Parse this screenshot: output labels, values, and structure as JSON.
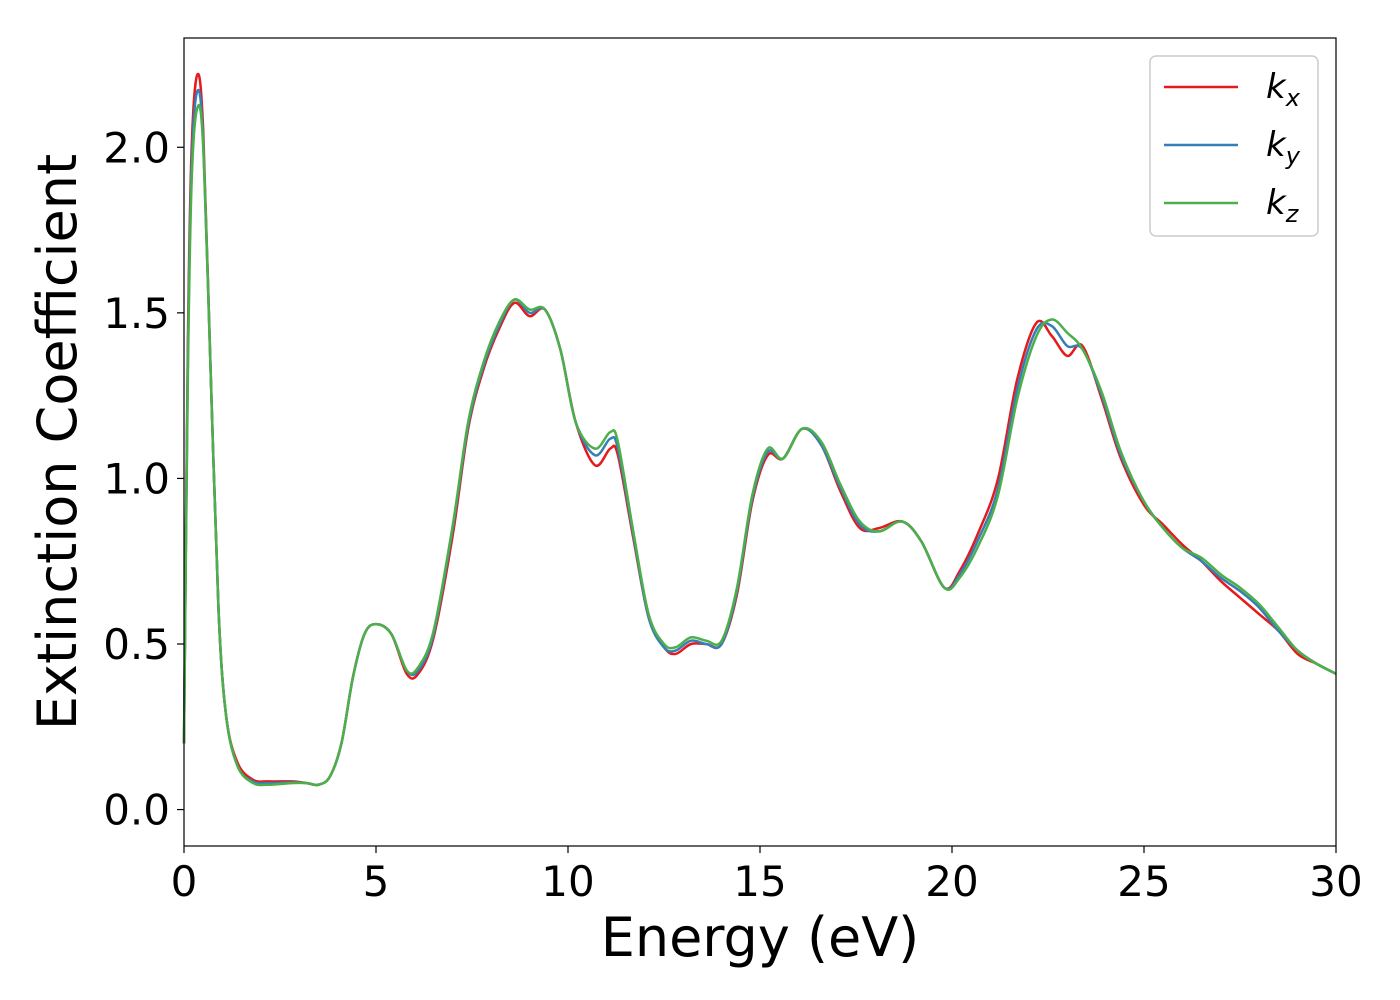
{
  "chart_data": {
    "type": "line",
    "title": "",
    "xlabel": "Energy (eV)",
    "ylabel": "Extinction Coefficient",
    "xlim": [
      0,
      30
    ],
    "ylim": [
      -0.11,
      2.33
    ],
    "xticks": [
      0,
      5,
      10,
      15,
      20,
      25,
      30
    ],
    "xtick_labels": [
      "0",
      "5",
      "10",
      "15",
      "20",
      "25",
      "30"
    ],
    "yticks": [
      0.0,
      0.5,
      1.0,
      1.5,
      2.0
    ],
    "ytick_labels": [
      "0.0",
      "0.5",
      "1.0",
      "1.5",
      "2.0"
    ],
    "grid": false,
    "legend": "top-right",
    "series": [
      {
        "name": "k",
        "subscript": "x",
        "color": "#e41a1c",
        "points": [
          [
            0,
            0.2
          ],
          [
            0.1,
            1.4
          ],
          [
            0.2,
            2.0
          ],
          [
            0.35,
            2.22
          ],
          [
            0.5,
            2.05
          ],
          [
            0.7,
            1.3
          ],
          [
            0.9,
            0.6
          ],
          [
            1.1,
            0.28
          ],
          [
            1.4,
            0.14
          ],
          [
            1.8,
            0.09
          ],
          [
            2.2,
            0.085
          ],
          [
            2.8,
            0.085
          ],
          [
            3.2,
            0.08
          ],
          [
            3.5,
            0.075
          ],
          [
            3.8,
            0.1
          ],
          [
            4.1,
            0.2
          ],
          [
            4.4,
            0.4
          ],
          [
            4.7,
            0.53
          ],
          [
            5.0,
            0.56
          ],
          [
            5.4,
            0.53
          ],
          [
            5.8,
            0.41
          ],
          [
            6.1,
            0.41
          ],
          [
            6.5,
            0.52
          ],
          [
            7.0,
            0.83
          ],
          [
            7.4,
            1.15
          ],
          [
            7.8,
            1.33
          ],
          [
            8.2,
            1.45
          ],
          [
            8.6,
            1.53
          ],
          [
            9.0,
            1.49
          ],
          [
            9.4,
            1.51
          ],
          [
            9.8,
            1.39
          ],
          [
            10.2,
            1.17
          ],
          [
            10.7,
            1.04
          ],
          [
            11.1,
            1.09
          ],
          [
            11.3,
            1.07
          ],
          [
            11.7,
            0.82
          ],
          [
            12.1,
            0.58
          ],
          [
            12.5,
            0.49
          ],
          [
            12.8,
            0.47
          ],
          [
            13.2,
            0.5
          ],
          [
            13.6,
            0.5
          ],
          [
            14.0,
            0.5
          ],
          [
            14.4,
            0.65
          ],
          [
            14.8,
            0.93
          ],
          [
            15.2,
            1.07
          ],
          [
            15.6,
            1.06
          ],
          [
            16.1,
            1.15
          ],
          [
            16.6,
            1.1
          ],
          [
            17.1,
            0.96
          ],
          [
            17.6,
            0.85
          ],
          [
            18.1,
            0.85
          ],
          [
            18.7,
            0.87
          ],
          [
            19.2,
            0.81
          ],
          [
            19.8,
            0.67
          ],
          [
            20.2,
            0.72
          ],
          [
            20.7,
            0.84
          ],
          [
            21.2,
            1.0
          ],
          [
            21.7,
            1.3
          ],
          [
            22.2,
            1.47
          ],
          [
            22.6,
            1.43
          ],
          [
            23.0,
            1.37
          ],
          [
            23.4,
            1.4
          ],
          [
            23.9,
            1.24
          ],
          [
            24.4,
            1.06
          ],
          [
            25.0,
            0.92
          ],
          [
            25.5,
            0.86
          ],
          [
            26.0,
            0.8
          ],
          [
            26.5,
            0.75
          ],
          [
            27.0,
            0.69
          ],
          [
            27.5,
            0.64
          ],
          [
            28.0,
            0.59
          ],
          [
            28.5,
            0.54
          ],
          [
            29.0,
            0.47
          ],
          [
            29.5,
            0.44
          ],
          [
            30.0,
            0.41
          ]
        ]
      },
      {
        "name": "k",
        "subscript": "y",
        "color": "#377eb8",
        "points": [
          [
            0,
            0.2
          ],
          [
            0.1,
            1.35
          ],
          [
            0.2,
            1.95
          ],
          [
            0.35,
            2.17
          ],
          [
            0.5,
            2.02
          ],
          [
            0.7,
            1.3
          ],
          [
            0.9,
            0.6
          ],
          [
            1.1,
            0.28
          ],
          [
            1.4,
            0.13
          ],
          [
            1.8,
            0.085
          ],
          [
            2.2,
            0.08
          ],
          [
            2.8,
            0.082
          ],
          [
            3.2,
            0.08
          ],
          [
            3.5,
            0.075
          ],
          [
            3.8,
            0.1
          ],
          [
            4.1,
            0.2
          ],
          [
            4.4,
            0.4
          ],
          [
            4.7,
            0.53
          ],
          [
            5.0,
            0.56
          ],
          [
            5.4,
            0.53
          ],
          [
            5.8,
            0.42
          ],
          [
            6.1,
            0.42
          ],
          [
            6.5,
            0.53
          ],
          [
            7.0,
            0.85
          ],
          [
            7.4,
            1.16
          ],
          [
            7.8,
            1.34
          ],
          [
            8.2,
            1.46
          ],
          [
            8.6,
            1.54
          ],
          [
            9.0,
            1.5
          ],
          [
            9.4,
            1.51
          ],
          [
            9.8,
            1.39
          ],
          [
            10.2,
            1.17
          ],
          [
            10.7,
            1.07
          ],
          [
            11.1,
            1.12
          ],
          [
            11.3,
            1.09
          ],
          [
            11.7,
            0.83
          ],
          [
            12.1,
            0.58
          ],
          [
            12.5,
            0.49
          ],
          [
            12.8,
            0.48
          ],
          [
            13.2,
            0.51
          ],
          [
            13.6,
            0.5
          ],
          [
            14.0,
            0.5
          ],
          [
            14.4,
            0.66
          ],
          [
            14.8,
            0.94
          ],
          [
            15.2,
            1.08
          ],
          [
            15.6,
            1.06
          ],
          [
            16.1,
            1.15
          ],
          [
            16.6,
            1.1
          ],
          [
            17.1,
            0.97
          ],
          [
            17.6,
            0.86
          ],
          [
            18.1,
            0.84
          ],
          [
            18.7,
            0.87
          ],
          [
            19.2,
            0.81
          ],
          [
            19.8,
            0.67
          ],
          [
            20.2,
            0.71
          ],
          [
            20.7,
            0.82
          ],
          [
            21.2,
            0.97
          ],
          [
            21.7,
            1.27
          ],
          [
            22.2,
            1.45
          ],
          [
            22.6,
            1.46
          ],
          [
            23.0,
            1.4
          ],
          [
            23.4,
            1.39
          ],
          [
            23.9,
            1.25
          ],
          [
            24.4,
            1.07
          ],
          [
            25.0,
            0.93
          ],
          [
            25.5,
            0.85
          ],
          [
            26.0,
            0.79
          ],
          [
            26.5,
            0.75
          ],
          [
            27.0,
            0.7
          ],
          [
            27.5,
            0.66
          ],
          [
            28.0,
            0.61
          ],
          [
            28.5,
            0.54
          ],
          [
            29.0,
            0.48
          ],
          [
            29.5,
            0.44
          ],
          [
            30.0,
            0.41
          ]
        ]
      },
      {
        "name": "k",
        "subscript": "z",
        "color": "#4daf4a",
        "points": [
          [
            0,
            0.2
          ],
          [
            0.1,
            1.3
          ],
          [
            0.2,
            1.9
          ],
          [
            0.35,
            2.12
          ],
          [
            0.5,
            2.0
          ],
          [
            0.7,
            1.3
          ],
          [
            0.9,
            0.6
          ],
          [
            1.1,
            0.28
          ],
          [
            1.4,
            0.13
          ],
          [
            1.8,
            0.08
          ],
          [
            2.2,
            0.075
          ],
          [
            2.8,
            0.08
          ],
          [
            3.2,
            0.08
          ],
          [
            3.5,
            0.075
          ],
          [
            3.8,
            0.1
          ],
          [
            4.1,
            0.2
          ],
          [
            4.4,
            0.4
          ],
          [
            4.7,
            0.53
          ],
          [
            5.0,
            0.56
          ],
          [
            5.4,
            0.53
          ],
          [
            5.8,
            0.42
          ],
          [
            6.1,
            0.43
          ],
          [
            6.5,
            0.54
          ],
          [
            7.0,
            0.86
          ],
          [
            7.4,
            1.17
          ],
          [
            7.8,
            1.35
          ],
          [
            8.2,
            1.47
          ],
          [
            8.6,
            1.54
          ],
          [
            9.0,
            1.51
          ],
          [
            9.4,
            1.51
          ],
          [
            9.8,
            1.39
          ],
          [
            10.2,
            1.17
          ],
          [
            10.7,
            1.09
          ],
          [
            11.1,
            1.14
          ],
          [
            11.3,
            1.11
          ],
          [
            11.7,
            0.84
          ],
          [
            12.1,
            0.59
          ],
          [
            12.5,
            0.5
          ],
          [
            12.8,
            0.49
          ],
          [
            13.2,
            0.52
          ],
          [
            13.6,
            0.51
          ],
          [
            14.0,
            0.51
          ],
          [
            14.4,
            0.67
          ],
          [
            14.8,
            0.95
          ],
          [
            15.2,
            1.09
          ],
          [
            15.6,
            1.06
          ],
          [
            16.1,
            1.15
          ],
          [
            16.6,
            1.11
          ],
          [
            17.1,
            0.98
          ],
          [
            17.6,
            0.87
          ],
          [
            18.1,
            0.84
          ],
          [
            18.7,
            0.87
          ],
          [
            19.2,
            0.81
          ],
          [
            19.8,
            0.67
          ],
          [
            20.2,
            0.7
          ],
          [
            20.7,
            0.8
          ],
          [
            21.2,
            0.95
          ],
          [
            21.7,
            1.24
          ],
          [
            22.2,
            1.43
          ],
          [
            22.6,
            1.48
          ],
          [
            23.0,
            1.44
          ],
          [
            23.4,
            1.39
          ],
          [
            23.9,
            1.26
          ],
          [
            24.4,
            1.08
          ],
          [
            25.0,
            0.93
          ],
          [
            25.5,
            0.85
          ],
          [
            26.0,
            0.79
          ],
          [
            26.5,
            0.76
          ],
          [
            27.0,
            0.71
          ],
          [
            27.5,
            0.67
          ],
          [
            28.0,
            0.62
          ],
          [
            28.5,
            0.55
          ],
          [
            29.0,
            0.48
          ],
          [
            29.5,
            0.44
          ],
          [
            30.0,
            0.41
          ]
        ]
      }
    ]
  }
}
